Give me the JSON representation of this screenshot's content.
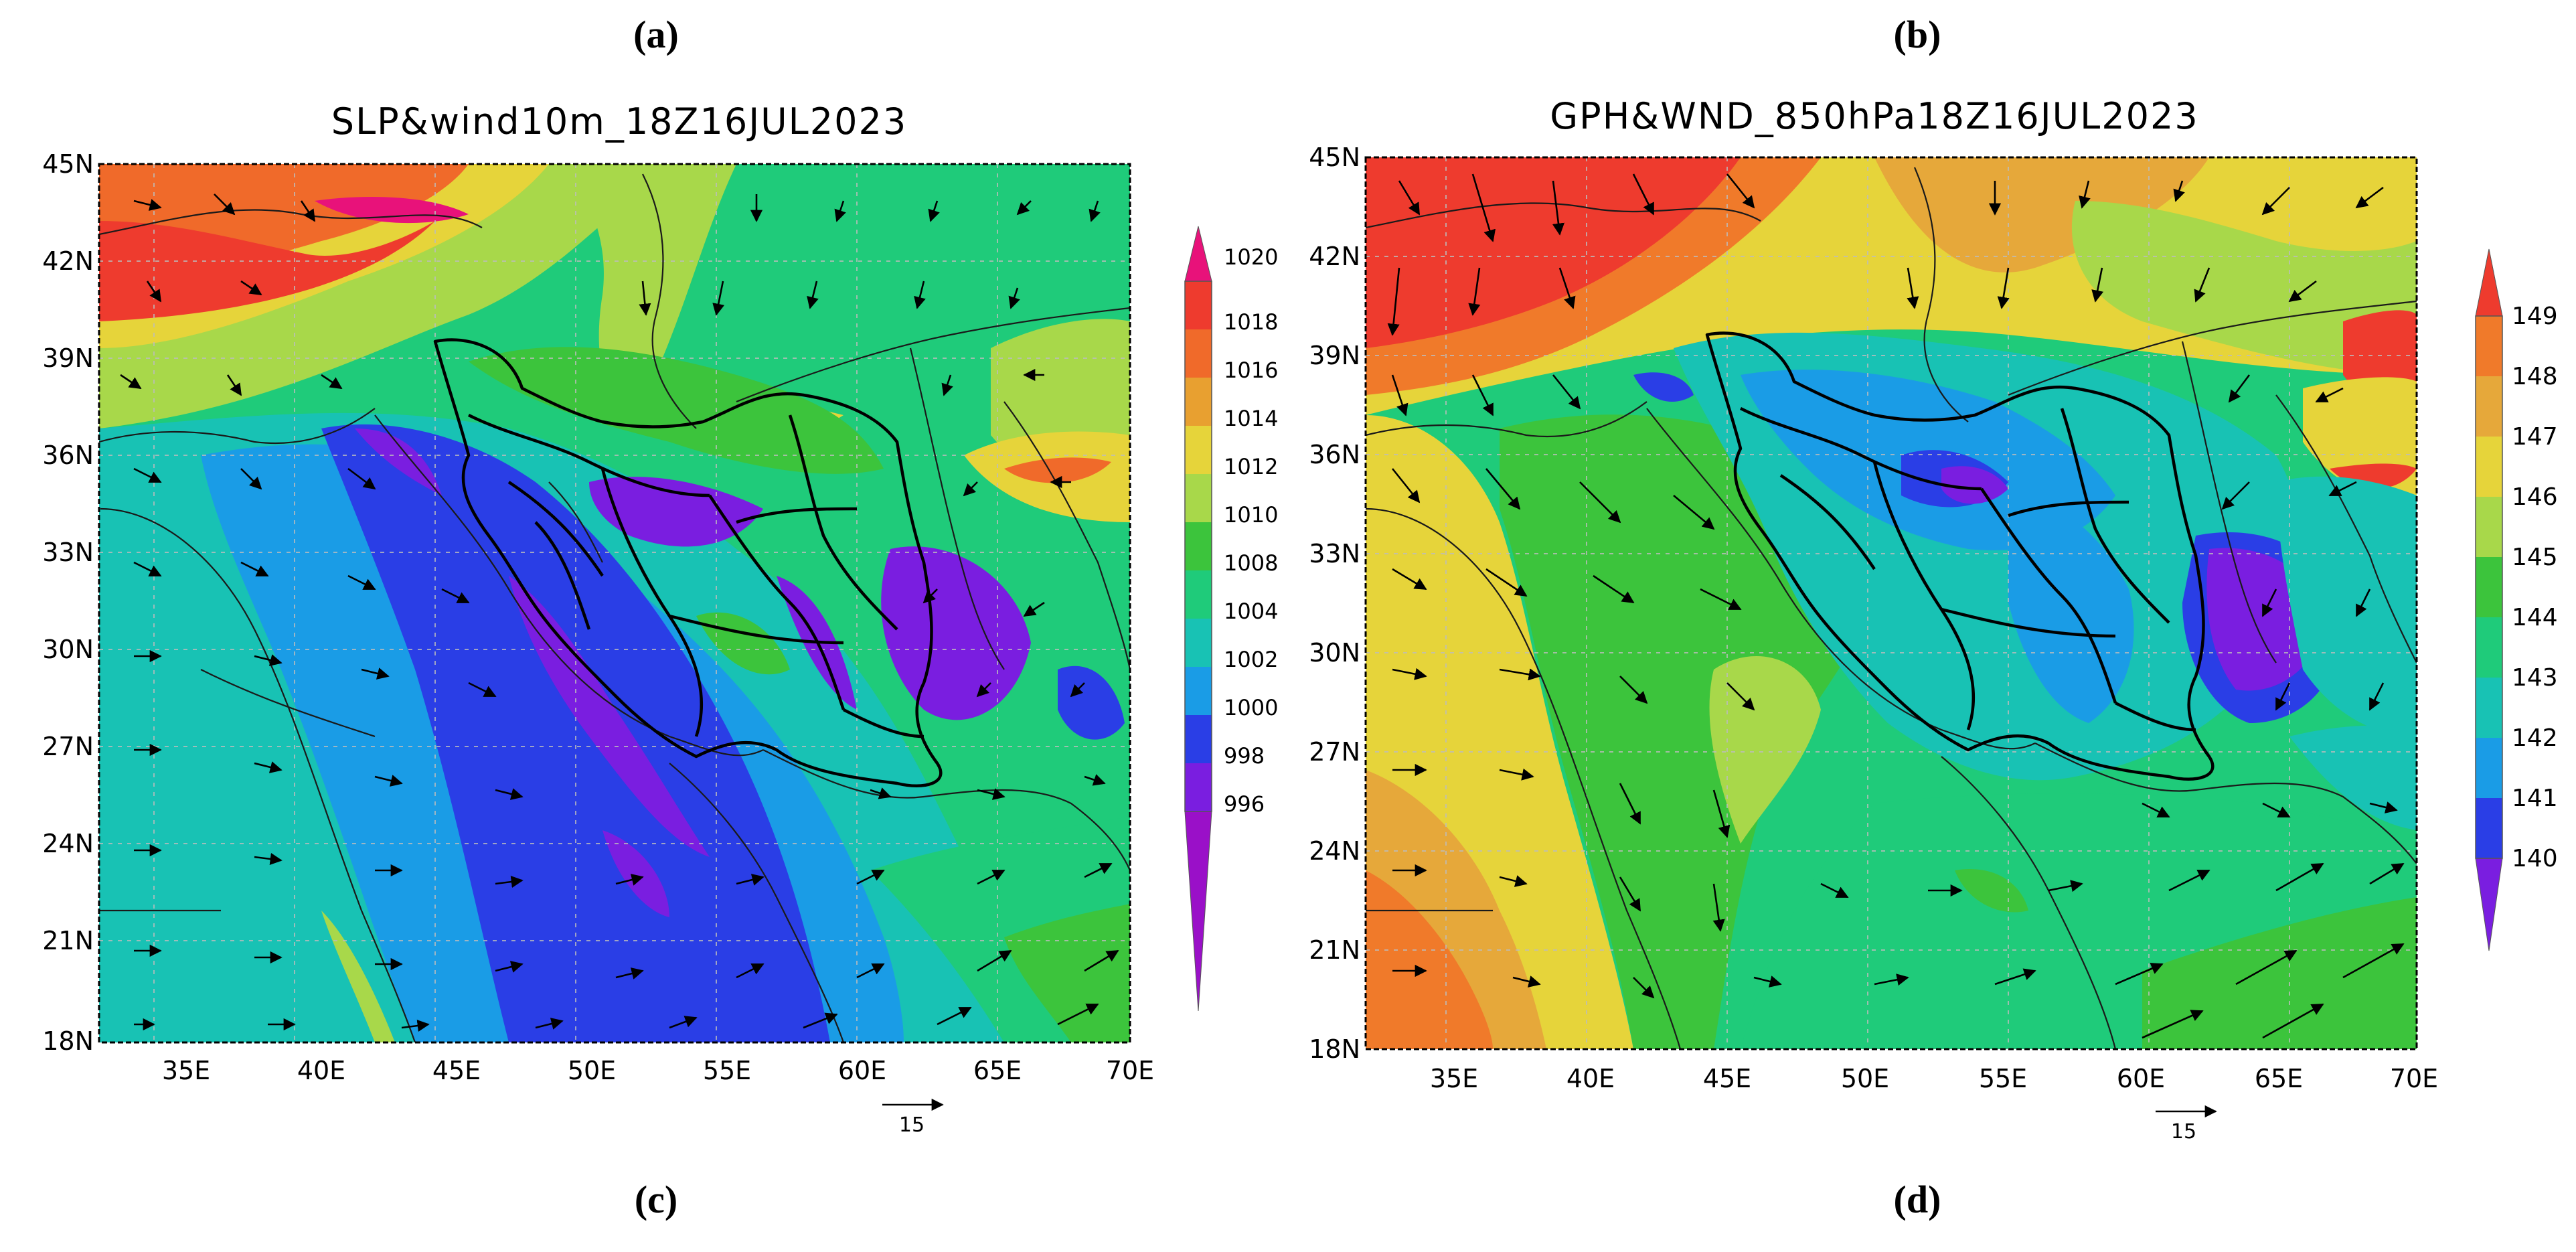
{
  "panel_labels": [
    "(a)",
    "(b)",
    "(c)",
    "(d)"
  ],
  "panels": [
    {
      "id": "a",
      "title": "SLP&wind10m_18Z16JUL2023",
      "xlabels": [
        "35E",
        "40E",
        "45E",
        "50E",
        "55E",
        "60E",
        "65E",
        "70E"
      ],
      "ylabels": [
        "45N",
        "42N",
        "39N",
        "36N",
        "33N",
        "30N",
        "27N",
        "24N",
        "21N",
        "18N"
      ],
      "lon_range": [
        32,
        70
      ],
      "lat_range": [
        18,
        45
      ],
      "colorbar": {
        "labels": [
          "1020",
          "1018",
          "1016",
          "1014",
          "1012",
          "1010",
          "1008",
          "1004",
          "1002",
          "1000",
          "998",
          "996"
        ],
        "colors": [
          "#e8127a",
          "#ee3b2e",
          "#f06a2a",
          "#e8a030",
          "#e6d43a",
          "#a8d84a",
          "#3cc43c",
          "#1fcb7a",
          "#18c2b4",
          "#1a9ce6",
          "#2a3ee6",
          "#7a1ee0",
          "#9a10c8"
        ]
      },
      "vector_ref": "15"
    },
    {
      "id": "b",
      "title": "GPH&WND_850hPa18Z16JUL2023",
      "xlabels": [
        "35E",
        "40E",
        "45E",
        "50E",
        "55E",
        "60E",
        "65E",
        "70E"
      ],
      "ylabels": [
        "45N",
        "42N",
        "39N",
        "36N",
        "33N",
        "30N",
        "27N",
        "24N",
        "21N",
        "18N"
      ],
      "lon_range": [
        32,
        70
      ],
      "lat_range": [
        18,
        45
      ],
      "colorbar": {
        "labels": [
          "149",
          "148",
          "147",
          "146",
          "145",
          "144",
          "143",
          "142",
          "141",
          "140"
        ],
        "colors": [
          "#ee3b2e",
          "#f07a2a",
          "#e6a83a",
          "#e6d43a",
          "#a8d84a",
          "#3cc43c",
          "#1fcb7a",
          "#18c2b4",
          "#1a9ce6",
          "#2a3ee6",
          "#7a1ee0"
        ]
      },
      "vector_ref": "15"
    }
  ]
}
